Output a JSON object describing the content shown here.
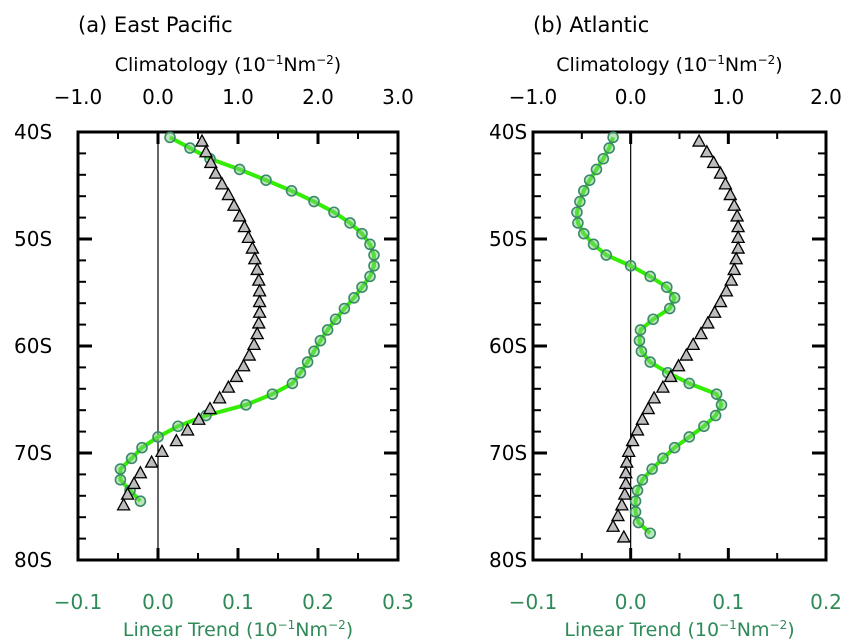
{
  "chart_data": [
    {
      "type": "line",
      "panel_title": "(a) East Pacific",
      "y_ticks": [
        "40S",
        "50S",
        "60S",
        "70S",
        "80S"
      ],
      "ylim": [
        -80,
        -40
      ],
      "top_axis": {
        "label": "Climatology (10",
        "exp": "−1",
        "unit_mid": "Nm",
        "exp2": "−2",
        "close": ")",
        "ticks": [
          "−1.0",
          "0.0",
          "1.0",
          "2.0",
          "3.0"
        ],
        "lim": [
          -1.0,
          3.0
        ]
      },
      "bottom_axis": {
        "label": "Linear Trend (10",
        "exp": "−1",
        "unit_mid": "Nm",
        "exp2": "−2",
        "close": ")",
        "ticks": [
          "−0.1",
          "0.0",
          "0.1",
          "0.2",
          "0.3"
        ],
        "lim": [
          -0.1,
          0.3
        ]
      },
      "series": [
        {
          "axis": "bottom",
          "color": "#33ee00",
          "marker_edge": "#3a8a6a",
          "y": [
            -40.5,
            -41.5,
            -42.5,
            -43.5,
            -44.5,
            -45.5,
            -46.5,
            -47.5,
            -48.5,
            -49.5,
            -50.5,
            -51.5,
            -52.5,
            -53.5,
            -54.5,
            -55.5,
            -56.5,
            -57.5,
            -58.5,
            -59.5,
            -60.5,
            -61.5,
            -62.5,
            -63.5,
            -64.5,
            -65.5,
            -66.5,
            -67.5,
            -68.5,
            -69.5,
            -70.5,
            -71.5,
            -72.5,
            -73.5,
            -74.5
          ],
          "x": [
            0.015,
            0.04,
            0.065,
            0.102,
            0.135,
            0.167,
            0.195,
            0.22,
            0.24,
            0.255,
            0.265,
            0.27,
            0.27,
            0.265,
            0.255,
            0.245,
            0.233,
            0.222,
            0.212,
            0.203,
            0.195,
            0.187,
            0.178,
            0.168,
            0.143,
            0.11,
            0.06,
            0.025,
            0.0,
            -0.02,
            -0.033,
            -0.047,
            -0.047,
            -0.035,
            -0.022
          ]
        },
        {
          "axis": "top",
          "color": "#000000",
          "marker_fill": "#bdbdbd",
          "y": [
            -40.8,
            -41.8,
            -42.8,
            -43.8,
            -44.8,
            -45.8,
            -46.8,
            -47.8,
            -48.8,
            -49.8,
            -50.8,
            -51.8,
            -52.8,
            -53.8,
            -54.8,
            -55.8,
            -56.8,
            -57.8,
            -58.8,
            -59.8,
            -60.8,
            -61.8,
            -62.8,
            -63.8,
            -64.8,
            -65.8,
            -66.8,
            -67.8,
            -68.8,
            -69.8,
            -70.8,
            -71.8,
            -72.8,
            -73.8,
            -74.8
          ],
          "x": [
            0.55,
            0.6,
            0.66,
            0.72,
            0.8,
            0.88,
            0.95,
            1.02,
            1.08,
            1.13,
            1.18,
            1.21,
            1.24,
            1.26,
            1.27,
            1.27,
            1.27,
            1.26,
            1.24,
            1.2,
            1.14,
            1.07,
            0.98,
            0.88,
            0.77,
            0.65,
            0.51,
            0.37,
            0.23,
            0.05,
            -0.08,
            -0.22,
            -0.3,
            -0.38,
            -0.43
          ]
        }
      ]
    },
    {
      "type": "line",
      "panel_title": "(b) Atlantic",
      "y_ticks": [
        "40S",
        "50S",
        "60S",
        "70S",
        "80S"
      ],
      "ylim": [
        -80,
        -40
      ],
      "top_axis": {
        "label": "Climatology (10",
        "exp": "−1",
        "unit_mid": "Nm",
        "exp2": "−2",
        "close": ")",
        "ticks": [
          "−1.0",
          "0.0",
          "1.0",
          "2.0"
        ],
        "lim": [
          -1.0,
          2.0
        ]
      },
      "bottom_axis": {
        "label": "Linear Trend (10",
        "exp": "−1",
        "unit_mid": "Nm",
        "exp2": "−2",
        "close": ")",
        "ticks": [
          "−0.1",
          "0.0",
          "0.1",
          "0.2"
        ],
        "lim": [
          -0.1,
          0.2
        ]
      },
      "series": [
        {
          "axis": "bottom",
          "color": "#33ee00",
          "marker_edge": "#3a8a6a",
          "y": [
            -40.5,
            -41.5,
            -42.5,
            -43.5,
            -44.5,
            -45.5,
            -46.5,
            -47.5,
            -48.5,
            -49.5,
            -50.5,
            -51.5,
            -52.5,
            -53.5,
            -54.5,
            -55.5,
            -56.5,
            -57.5,
            -58.5,
            -59.5,
            -60.5,
            -61.5,
            -62.5,
            -63.5,
            -64.5,
            -65.5,
            -66.5,
            -67.5,
            -68.5,
            -69.5,
            -70.5,
            -71.5,
            -72.5,
            -73.5,
            -74.5,
            -75.5,
            -76.5,
            -77.5
          ],
          "x": [
            -0.018,
            -0.022,
            -0.028,
            -0.035,
            -0.042,
            -0.048,
            -0.052,
            -0.055,
            -0.054,
            -0.048,
            -0.038,
            -0.025,
            0.0,
            0.02,
            0.037,
            0.045,
            0.04,
            0.023,
            0.01,
            0.009,
            0.011,
            0.02,
            0.038,
            0.06,
            0.088,
            0.093,
            0.087,
            0.075,
            0.06,
            0.045,
            0.033,
            0.022,
            0.012,
            0.007,
            0.005,
            0.005,
            0.008,
            0.02
          ]
        },
        {
          "axis": "top",
          "color": "#000000",
          "marker_fill": "#bdbdbd",
          "y": [
            -40.8,
            -41.8,
            -42.8,
            -43.8,
            -44.8,
            -45.8,
            -46.8,
            -47.8,
            -48.8,
            -49.8,
            -50.8,
            -51.8,
            -52.8,
            -53.8,
            -54.8,
            -55.8,
            -56.8,
            -57.8,
            -58.8,
            -59.8,
            -60.8,
            -61.8,
            -62.8,
            -63.8,
            -64.8,
            -65.8,
            -66.8,
            -67.8,
            -68.8,
            -69.8,
            -70.8,
            -71.8,
            -72.8,
            -73.8,
            -74.8,
            -75.8,
            -76.8,
            -77.8
          ],
          "x": [
            0.7,
            0.78,
            0.85,
            0.92,
            0.97,
            1.02,
            1.06,
            1.09,
            1.1,
            1.1,
            1.1,
            1.08,
            1.06,
            1.03,
            0.98,
            0.92,
            0.86,
            0.79,
            0.72,
            0.64,
            0.57,
            0.49,
            0.41,
            0.33,
            0.24,
            0.18,
            0.12,
            0.07,
            0.02,
            -0.02,
            -0.04,
            -0.05,
            -0.05,
            -0.06,
            -0.09,
            -0.13,
            -0.18,
            -0.07
          ]
        }
      ]
    }
  ]
}
